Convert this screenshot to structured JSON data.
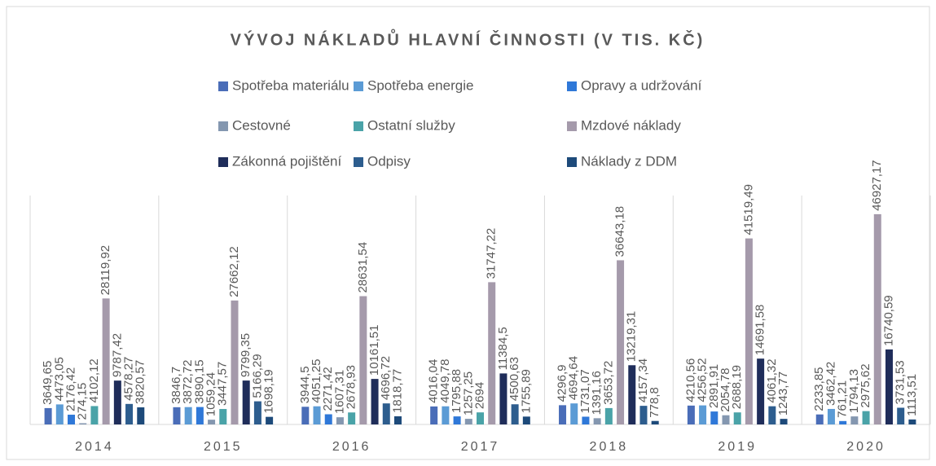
{
  "chart_data": {
    "type": "bar",
    "title": "VÝVOJ NÁKLADŮ HLAVNÍ ČINNOSTI (V TIS. KČ)",
    "categories": [
      "2014",
      "2015",
      "2016",
      "2017",
      "2018",
      "2019",
      "2020"
    ],
    "ylim": [
      0,
      50000
    ],
    "series": [
      {
        "name": "Spotřeba materiálu",
        "color": "#4a6db8",
        "values": [
          3649.65,
          3846.7,
          3944.5,
          4016.04,
          4296.9,
          4210.56,
          2233.85
        ],
        "value_labels": [
          "3649,65",
          "3846,7",
          "3944,5",
          "4016,04",
          "4296,9",
          "4210,56",
          "2233,85"
        ]
      },
      {
        "name": "Spotřeba energie",
        "color": "#5b9bd5",
        "values": [
          4473.05,
          3872.72,
          4051.25,
          4049.78,
          4694.64,
          4256.52,
          3462.42
        ],
        "value_labels": [
          "4473,05",
          "3872,72",
          "4051,25",
          "4049,78",
          "4694,64",
          "4256,52",
          "3462,42"
        ]
      },
      {
        "name": "Opravy a udržování",
        "color": "#2f78d8",
        "values": [
          2176.42,
          3890.15,
          2271.42,
          1795.88,
          1731.07,
          2891.91,
          761.21
        ],
        "value_labels": [
          "2176,42",
          "3890,15",
          "2271,42",
          "1795,88",
          "1731,07",
          "2891,91",
          "761,21"
        ]
      },
      {
        "name": "Cestovné",
        "color": "#8497b0",
        "values": [
          274.15,
          1059.24,
          1607.31,
          1257.25,
          1391.16,
          2054.78,
          1794.13
        ],
        "value_labels": [
          "274,15",
          "1059,24",
          "1607,31",
          "1257,25",
          "1391,16",
          "2054,78",
          "1794,13"
        ]
      },
      {
        "name": "Ostatní služby",
        "color": "#4aa3a8",
        "values": [
          4102.12,
          3447.57,
          2678.93,
          2694,
          3653.72,
          2688.19,
          2975.62
        ],
        "value_labels": [
          "4102,12",
          "3447,57",
          "2678,93",
          "2694",
          "3653,72",
          "2688,19",
          "2975,62"
        ]
      },
      {
        "name": "Mzdové náklady",
        "color": "#a59aab",
        "values": [
          28119.92,
          27662.12,
          28631.54,
          31747.22,
          36643.18,
          41519.49,
          46927.17
        ],
        "value_labels": [
          "28119,92",
          "27662,12",
          "28631,54",
          "31747,22",
          "36643,18",
          "41519,49",
          "46927,17"
        ]
      },
      {
        "name": "Zákonná pojištění",
        "color": "#1f2d5a",
        "values": [
          9787.42,
          9799.35,
          10161.51,
          11384.5,
          13219.31,
          14691.58,
          16740.59
        ],
        "value_labels": [
          "9787,42",
          "9799,35",
          "10161,51",
          "11384,5",
          "13219,31",
          "14691,58",
          "16740,59"
        ]
      },
      {
        "name": "Odpisy",
        "color": "#2d5d8e",
        "values": [
          4578.27,
          5166.29,
          4696.72,
          4500.63,
          4157.34,
          4061.32,
          3731.53
        ],
        "value_labels": [
          "4578,27",
          "5166,29",
          "4696,72",
          "4500,63",
          "4157,34",
          "4061,32",
          "3731,53"
        ]
      },
      {
        "name": "Náklady z DDM",
        "color": "#1d4a7a",
        "values": [
          3820.57,
          1698.19,
          1818.77,
          1755.89,
          778.8,
          1243.77,
          1113.51
        ],
        "value_labels": [
          "3820,57",
          "1698,19",
          "1818,77",
          "1755,89",
          "778,8",
          "1243,77",
          "1113,51"
        ]
      }
    ]
  }
}
